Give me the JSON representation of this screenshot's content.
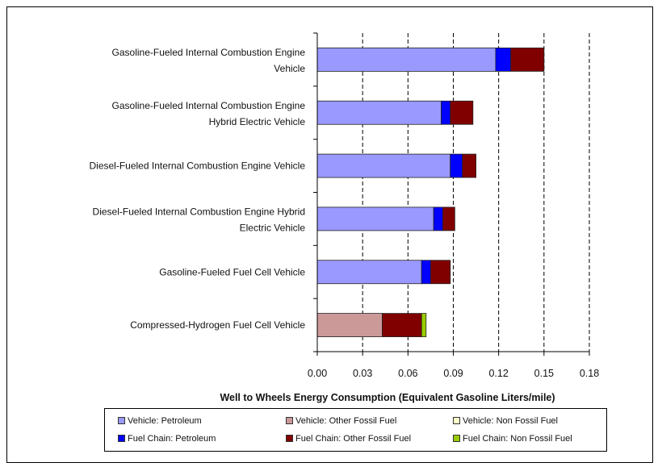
{
  "chart_data": {
    "type": "bar",
    "orientation": "horizontal",
    "stacked": true,
    "categories": [
      [
        "Gasoline-Fueled Internal Combustion Engine",
        "Vehicle"
      ],
      [
        "Gasoline-Fueled Internal Combustion Engine",
        "Hybrid Electric Vehicle"
      ],
      [
        "Diesel-Fueled Internal Combustion Engine Vehicle"
      ],
      [
        "Diesel-Fueled Internal Combustion Engine Hybrid",
        "Electric Vehicle"
      ],
      [
        "Gasoline-Fueled Fuel Cell Vehicle"
      ],
      [
        "Compressed-Hydrogen Fuel Cell Vehicle"
      ]
    ],
    "series": [
      {
        "name": "Vehicle: Petroleum",
        "color": "#9999ff",
        "values": [
          0.118,
          0.082,
          0.088,
          0.077,
          0.069,
          0
        ]
      },
      {
        "name": "Vehicle: Other Fossil Fuel",
        "color": "#cc9999",
        "values": [
          0,
          0,
          0,
          0,
          0,
          0.043
        ]
      },
      {
        "name": "Vehicle: Non Fossil Fuel",
        "color": "#ffffcc",
        "values": [
          0,
          0,
          0,
          0,
          0,
          0
        ]
      },
      {
        "name": "Fuel Chain: Petroleum",
        "color": "#0000ff",
        "values": [
          0.01,
          0.006,
          0.008,
          0.006,
          0.006,
          0
        ]
      },
      {
        "name": "Fuel Chain: Other Fossil Fuel",
        "color": "#800000",
        "values": [
          0.022,
          0.015,
          0.009,
          0.008,
          0.013,
          0.026
        ]
      },
      {
        "name": "Fuel Chain: Non Fossil Fuel",
        "color": "#99cc00",
        "values": [
          0,
          0,
          0,
          0,
          0,
          0.003
        ]
      }
    ],
    "xlim": [
      0,
      0.18
    ],
    "xticks": [
      "0.00",
      "0.03",
      "0.06",
      "0.09",
      "0.12",
      "0.15",
      "0.18"
    ],
    "xlabel": "Well to Wheels Energy Consumption (Equivalent Gasoline Liters/mile)",
    "grid": "vertical dashed",
    "legend_position": "bottom"
  },
  "legend": {
    "items": [
      {
        "label": "Vehicle: Petroleum",
        "color": "#9999ff"
      },
      {
        "label": "Vehicle: Other Fossil Fuel",
        "color": "#cc9999"
      },
      {
        "label": "Vehicle: Non Fossil Fuel",
        "color": "#ffffcc"
      },
      {
        "label": "Fuel Chain: Petroleum",
        "color": "#0000ff"
      },
      {
        "label": "Fuel Chain: Other Fossil Fuel",
        "color": "#800000"
      },
      {
        "label": "Fuel Chain: Non Fossil Fuel",
        "color": "#99cc00"
      }
    ]
  }
}
